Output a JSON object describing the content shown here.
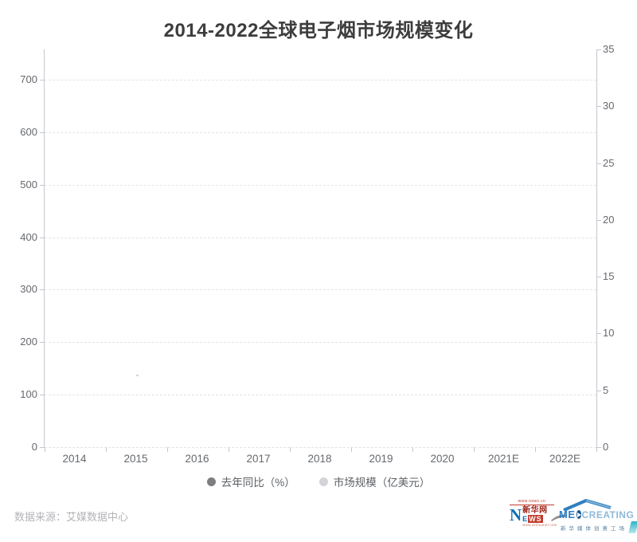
{
  "title": "2014-2022全球电子烟市场规模变化",
  "source": "数据来源：艾媒数据中心",
  "legend": [
    {
      "label": "去年同比（%）",
      "color": "#7e7e82"
    },
    {
      "label": "市场规模（亿美元）",
      "color": "#d3d3d8"
    }
  ],
  "chart_data": {
    "type": "scatter",
    "title": "2014-2022全球电子烟市场规模变化",
    "categories": [
      "2014",
      "2015",
      "2016",
      "2017",
      "2018",
      "2019",
      "2020",
      "2021E",
      "2022E"
    ],
    "left_axis": {
      "ticks": [
        0,
        100,
        200,
        300,
        400,
        500,
        600,
        700
      ],
      "label": "去年同比（%）"
    },
    "right_axis": {
      "ticks": [
        0,
        5,
        10,
        15,
        20,
        25,
        30,
        35
      ],
      "label": "市场规模（亿美元）"
    },
    "series": [
      {
        "name": "去年同比（%）",
        "axis": "left",
        "values": []
      },
      {
        "name": "市场规模（亿美元）",
        "axis": "right",
        "values": []
      }
    ],
    "grid": {
      "horizontal_gridlines": "dashed",
      "vertical_gridlines": false
    },
    "legend_position": "bottom-center",
    "plot_state": "empty (no rendered data points)",
    "annotations": [
      {
        "type": "tiny-dot",
        "category": "2015",
        "axis": "left",
        "value": 137
      }
    ]
  },
  "logos": {
    "xinhua": {
      "url_top": "www.news.cn",
      "letter_n": "N",
      "letters_ews_blue": "E",
      "letters_ews_red": "WS",
      "cn_name": "新华网",
      "url_bottom": "www.xinhuanet.com"
    },
    "medcreating": {
      "text_before_play": "ME",
      "text_after_play": "CREATING",
      "subtitle": "新华媒体创意工场"
    }
  }
}
